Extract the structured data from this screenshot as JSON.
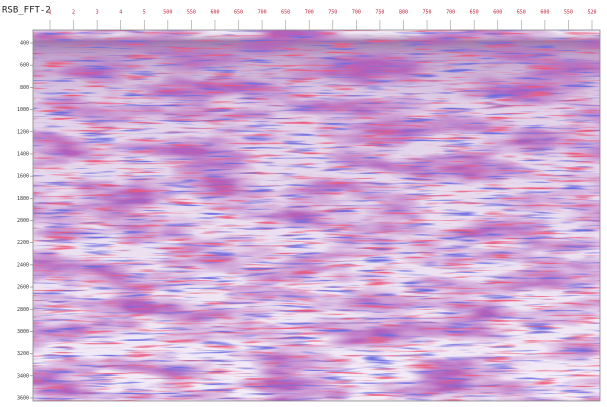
{
  "header": {
    "title": "RSB_FFT-2"
  },
  "axis": {
    "top_labels": [
      "1",
      "2",
      "3",
      "4",
      "5",
      "500",
      "550",
      "600",
      "650",
      "700",
      "650",
      "700",
      "750",
      "700",
      "750",
      "800",
      "750",
      "700",
      "650",
      "600",
      "650",
      "600",
      "550",
      "520"
    ],
    "left_labels": [
      "400",
      "600",
      "800",
      "1000",
      "1200",
      "1400",
      "1600",
      "1800",
      "2000",
      "2200",
      "2400",
      "2600",
      "2800",
      "3000",
      "3200",
      "3400",
      "3600"
    ]
  }
}
